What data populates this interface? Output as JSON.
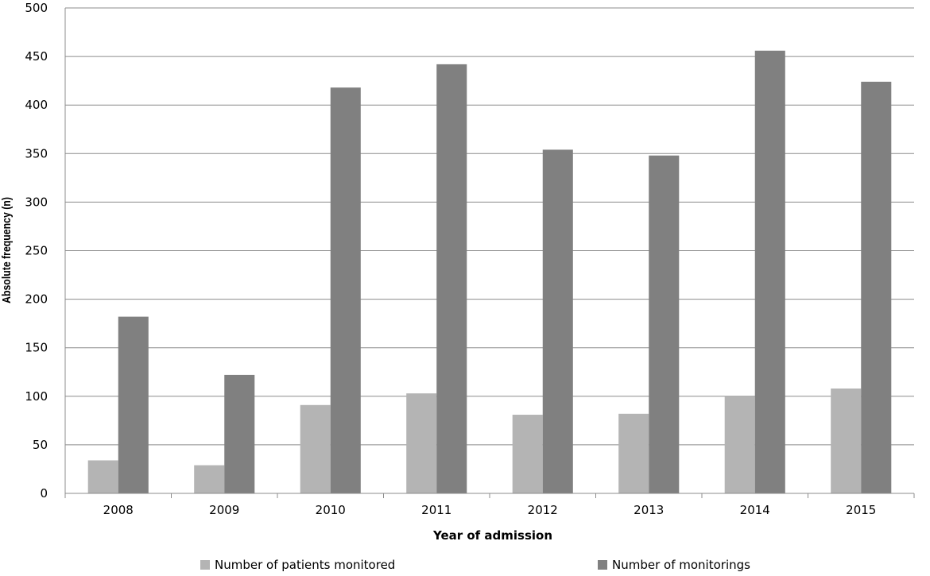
{
  "chart_data": {
    "type": "bar",
    "title": "",
    "xlabel": "Year of admission",
    "ylabel": "Absolute frequency (n)",
    "ylim": [
      0,
      500
    ],
    "yticks": [
      0,
      50,
      100,
      150,
      200,
      250,
      300,
      350,
      400,
      450,
      500
    ],
    "grid": true,
    "legend_position": "bottom",
    "categories": [
      "2008",
      "2009",
      "2010",
      "2011",
      "2012",
      "2013",
      "2014",
      "2015"
    ],
    "series": [
      {
        "name": "Number of patients monitored",
        "color": "#b4b4b4",
        "values": [
          34,
          29,
          91,
          103,
          81,
          82,
          100,
          108
        ]
      },
      {
        "name": "Number of monitorings",
        "color": "#808080",
        "values": [
          182,
          122,
          418,
          442,
          354,
          348,
          456,
          424
        ]
      }
    ]
  }
}
